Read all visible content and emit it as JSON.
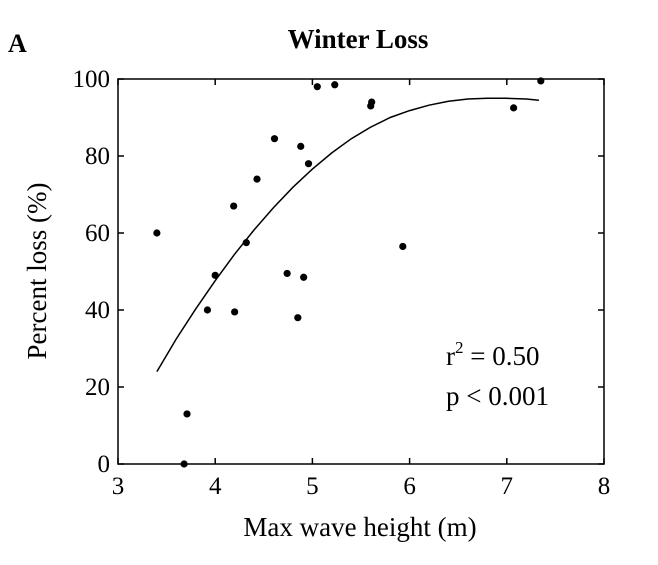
{
  "panel_letter": "A",
  "chart_data": {
    "type": "scatter",
    "title": "Winter Loss",
    "xlabel": "Max wave height (m)",
    "ylabel": "Percent loss (%)",
    "xlim": [
      3,
      8
    ],
    "ylim": [
      0,
      100
    ],
    "xticks": [
      3,
      4,
      5,
      6,
      7,
      8
    ],
    "yticks": [
      0,
      20,
      40,
      60,
      80,
      100
    ],
    "grid": false,
    "points": [
      {
        "x": 3.4,
        "y": 60
      },
      {
        "x": 3.68,
        "y": 0
      },
      {
        "x": 3.71,
        "y": 13
      },
      {
        "x": 3.92,
        "y": 40
      },
      {
        "x": 4.0,
        "y": 49
      },
      {
        "x": 4.19,
        "y": 67
      },
      {
        "x": 4.2,
        "y": 39.5
      },
      {
        "x": 4.32,
        "y": 57.5
      },
      {
        "x": 4.43,
        "y": 74
      },
      {
        "x": 4.61,
        "y": 84.5
      },
      {
        "x": 4.74,
        "y": 49.5
      },
      {
        "x": 4.85,
        "y": 38
      },
      {
        "x": 4.88,
        "y": 82.5
      },
      {
        "x": 4.91,
        "y": 48.5
      },
      {
        "x": 4.96,
        "y": 78
      },
      {
        "x": 5.05,
        "y": 98
      },
      {
        "x": 5.23,
        "y": 98.5
      },
      {
        "x": 5.6,
        "y": 93
      },
      {
        "x": 5.61,
        "y": 94
      },
      {
        "x": 5.93,
        "y": 56.5
      },
      {
        "x": 7.07,
        "y": 92.5
      },
      {
        "x": 7.35,
        "y": 99.5
      }
    ],
    "fit_curve": {
      "x": [
        3.4,
        3.6,
        3.8,
        4.0,
        4.2,
        4.4,
        4.6,
        4.8,
        5.0,
        5.2,
        5.4,
        5.6,
        5.8,
        6.0,
        6.2,
        6.4,
        6.6,
        6.8,
        7.0,
        7.2,
        7.33
      ],
      "y": [
        24,
        32.5,
        40.3,
        47.6,
        54.5,
        60.8,
        66.6,
        71.9,
        76.6,
        80.8,
        84.5,
        87.5,
        90.0,
        91.8,
        93.2,
        94.2,
        94.8,
        95.0,
        95.0,
        94.8,
        94.5
      ]
    },
    "annotations": {
      "r2_base": "r",
      "r2_sup": "2",
      "r2_rest": " = 0.50",
      "p_value": "p < 0.001"
    }
  }
}
